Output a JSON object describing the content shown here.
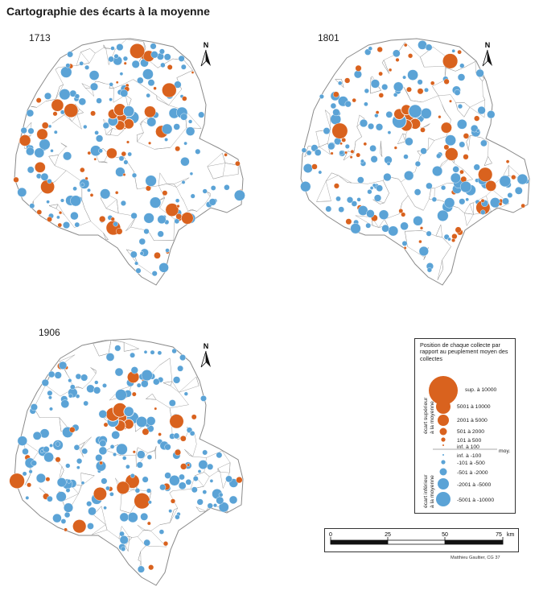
{
  "title": "Cartographie des écarts à la moyenne",
  "north_letter": "N",
  "maps": [
    {
      "year": "1713"
    },
    {
      "year": "1801"
    },
    {
      "year": "1906"
    }
  ],
  "colors": {
    "above": "#d9621e",
    "below": "#5ba3d6",
    "border": "#9a9a9a"
  },
  "legend": {
    "title": "Position de chaque collecte par rapport au peuplement moyen des collectes",
    "above_label_1": "écart supérieur",
    "above_label_2": "à la moyenne",
    "below_label_1": "écart inférieur",
    "below_label_2": "à la moyenne",
    "moy_label": "moy.",
    "classes": [
      {
        "label": "sup. à 10000",
        "color": "above"
      },
      {
        "label": "5001 à 10000",
        "color": "above"
      },
      {
        "label": "2001 à 5000",
        "color": "above"
      },
      {
        "label": "501 à 2000",
        "color": "above"
      },
      {
        "label": "101 à 500",
        "color": "above"
      },
      {
        "label": "inf. à 100",
        "color": "above"
      },
      {
        "label": "inf. à -100",
        "color": "below"
      },
      {
        "label": "-101 à -500",
        "color": "below"
      },
      {
        "label": "-501 à -2000",
        "color": "below"
      },
      {
        "label": "-2001 à -5000",
        "color": "below"
      },
      {
        "label": "-5001 à -10000",
        "color": "below"
      }
    ]
  },
  "scale": {
    "ticks": [
      "0",
      "25",
      "50",
      "75"
    ],
    "unit": "km"
  },
  "credit": "Matthieu Gaultier, CG 37"
}
